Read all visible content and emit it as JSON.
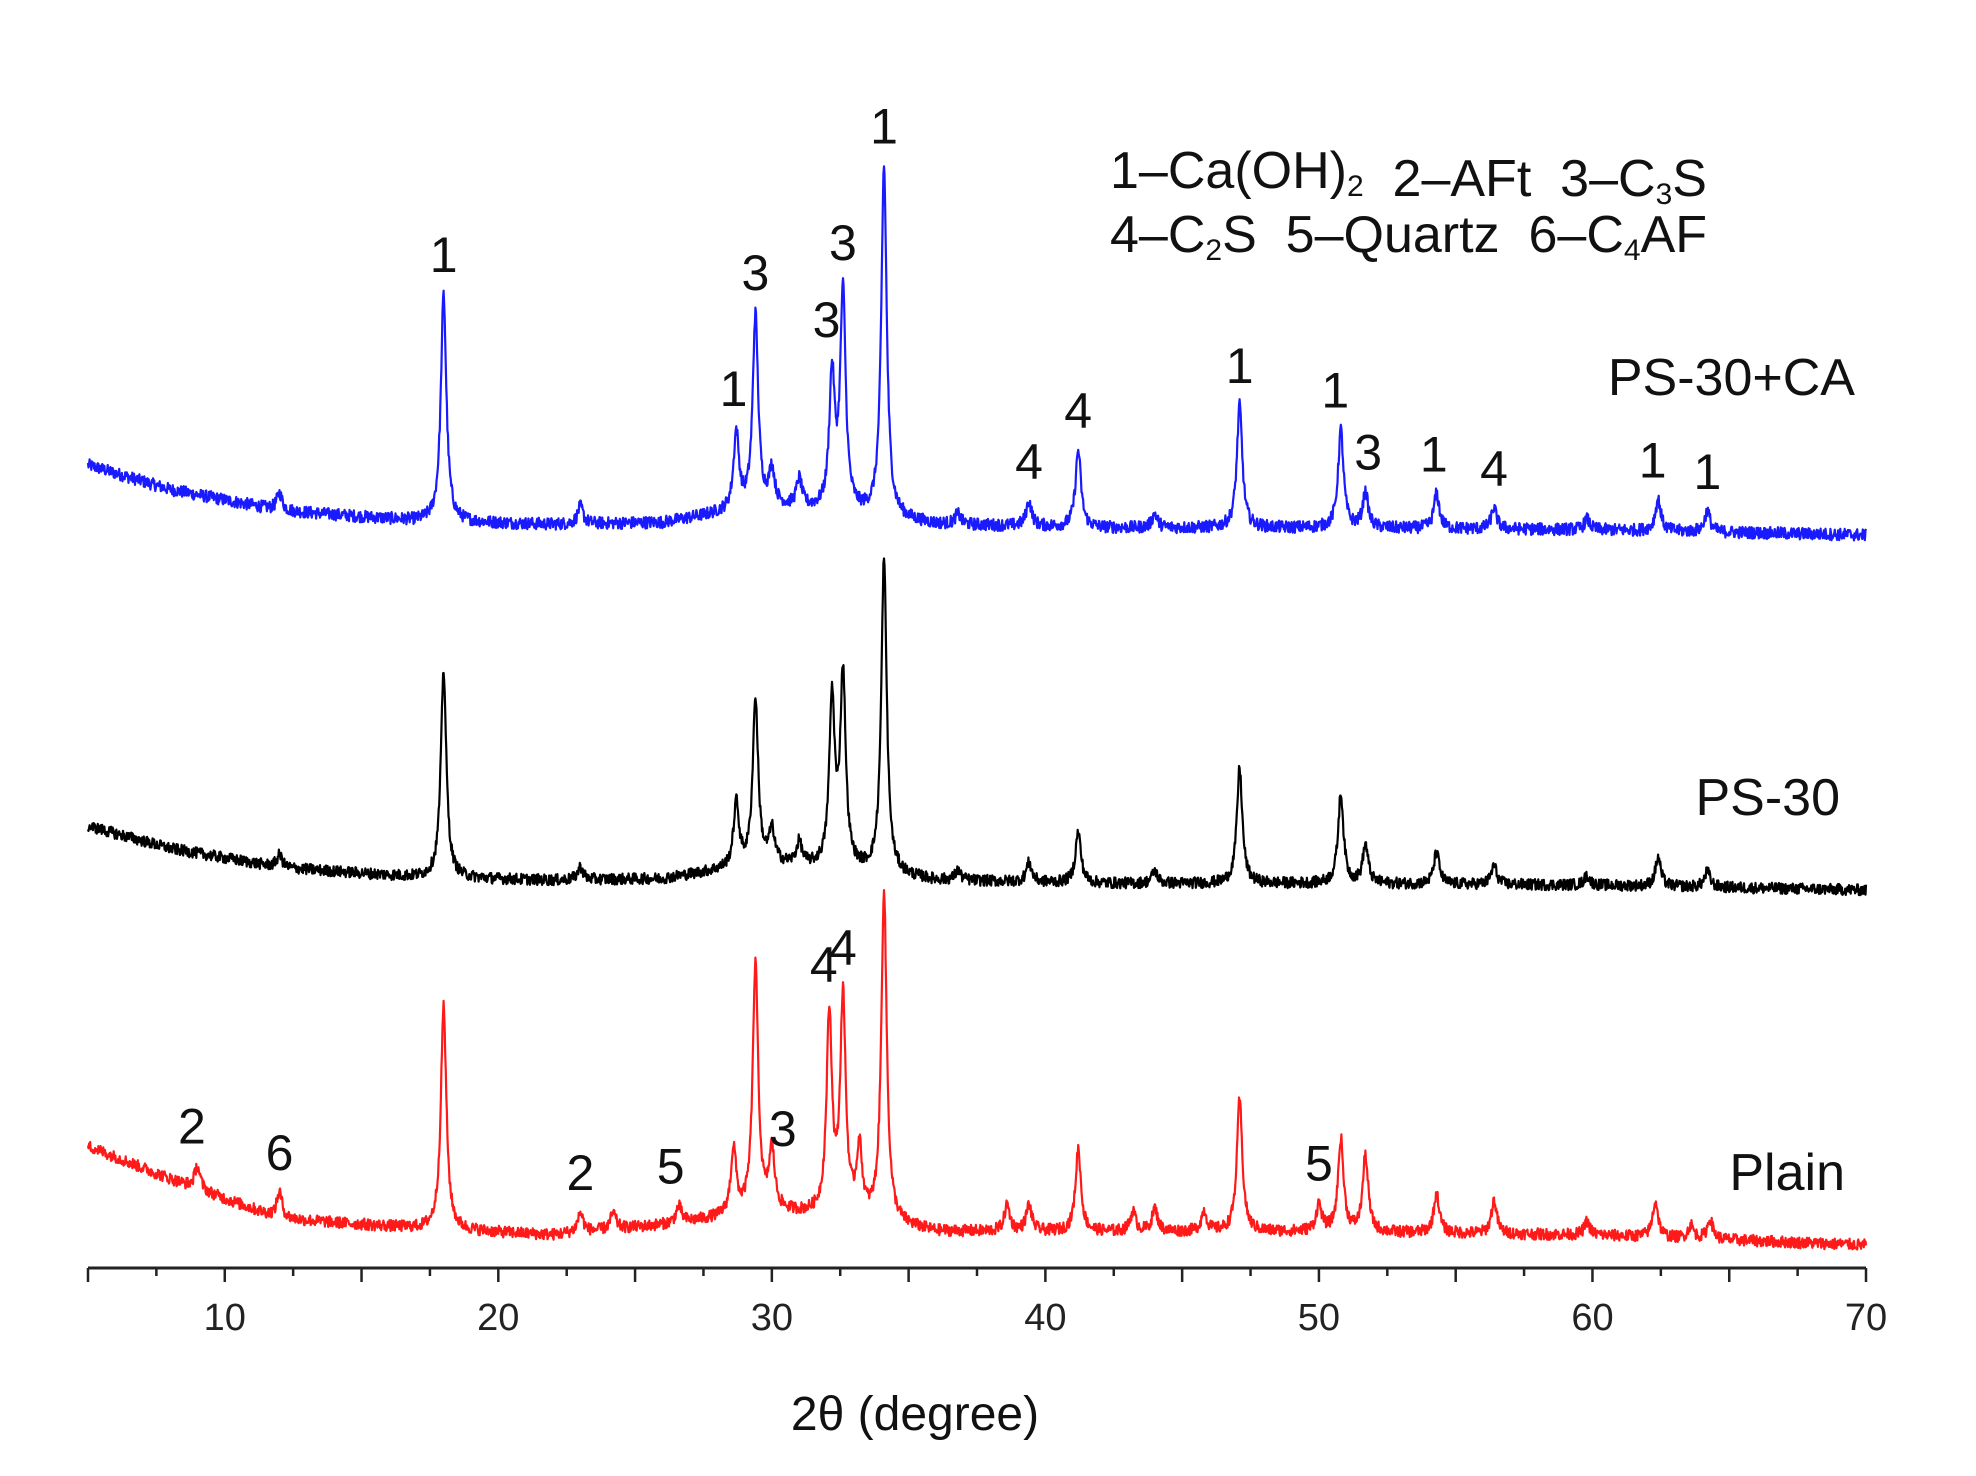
{
  "chart_data": {
    "type": "line",
    "xlabel": "2θ (degree)",
    "ylabel": "",
    "xlim": [
      5,
      70
    ],
    "x_ticks": [
      10,
      20,
      30,
      40,
      50,
      60,
      70
    ],
    "grid": false,
    "legend": {
      "line1": [
        {
          "num": "1",
          "name": "Ca(OH)",
          "sub": "2"
        },
        {
          "num": "2",
          "name": "AFt",
          "sub": ""
        },
        {
          "num": "3",
          "name": "C",
          "sub": "3",
          "suffix": "S"
        }
      ],
      "line2": [
        {
          "num": "4",
          "name": "C",
          "sub": "2",
          "suffix": "S"
        },
        {
          "num": "5",
          "name": "Quartz",
          "sub": ""
        },
        {
          "num": "6",
          "name": "C",
          "sub": "4",
          "suffix": "AF"
        }
      ]
    },
    "series": [
      {
        "name": "PS-30+CA",
        "color": "#1a1aff",
        "baseline": [
          [
            5,
            0.2
          ],
          [
            8,
            0.13
          ],
          [
            12,
            0.07
          ],
          [
            17,
            0.04
          ],
          [
            22,
            0.03
          ],
          [
            26,
            0.035
          ],
          [
            28,
            0.06
          ],
          [
            30,
            0.08
          ],
          [
            33,
            0.06
          ],
          [
            36,
            0.03
          ],
          [
            42,
            0.02
          ],
          [
            50,
            0.02
          ],
          [
            60,
            0.015
          ],
          [
            70,
            0.0
          ]
        ],
        "peaks": [
          [
            12.0,
            0.05
          ],
          [
            18.0,
            0.65
          ],
          [
            23.0,
            0.05
          ],
          [
            28.7,
            0.22
          ],
          [
            29.4,
            0.55
          ],
          [
            30.0,
            0.1
          ],
          [
            31.0,
            0.08
          ],
          [
            32.2,
            0.38
          ],
          [
            32.6,
            0.62
          ],
          [
            34.1,
            1.0
          ],
          [
            36.8,
            0.03
          ],
          [
            39.4,
            0.07
          ],
          [
            41.2,
            0.22
          ],
          [
            44.0,
            0.04
          ],
          [
            47.1,
            0.35
          ],
          [
            50.8,
            0.28
          ],
          [
            51.7,
            0.1
          ],
          [
            54.3,
            0.1
          ],
          [
            56.4,
            0.06
          ],
          [
            59.8,
            0.03
          ],
          [
            62.4,
            0.09
          ],
          [
            64.2,
            0.06
          ]
        ],
        "annotations": [
          {
            "x": 18.0,
            "text": "1"
          },
          {
            "x": 28.6,
            "text": "1"
          },
          {
            "x": 29.4,
            "text": "3"
          },
          {
            "x": 32.0,
            "text": "3"
          },
          {
            "x": 32.6,
            "text": "3"
          },
          {
            "x": 34.1,
            "text": "1"
          },
          {
            "x": 39.4,
            "text": "4"
          },
          {
            "x": 41.2,
            "text": "4"
          },
          {
            "x": 47.1,
            "text": "1"
          },
          {
            "x": 50.6,
            "text": "1"
          },
          {
            "x": 51.8,
            "text": "3"
          },
          {
            "x": 54.2,
            "text": "1"
          },
          {
            "x": 56.4,
            "text": "4"
          },
          {
            "x": 62.2,
            "text": "1"
          },
          {
            "x": 64.2,
            "text": "1"
          }
        ]
      },
      {
        "name": "PS-30",
        "color": "#000000",
        "baseline": [
          [
            5,
            0.2
          ],
          [
            8,
            0.13
          ],
          [
            12,
            0.07
          ],
          [
            17,
            0.04
          ],
          [
            22,
            0.03
          ],
          [
            26,
            0.035
          ],
          [
            28,
            0.06
          ],
          [
            30,
            0.08
          ],
          [
            33,
            0.06
          ],
          [
            36,
            0.03
          ],
          [
            42,
            0.02
          ],
          [
            50,
            0.02
          ],
          [
            60,
            0.015
          ],
          [
            70,
            0.0
          ]
        ],
        "peaks": [
          [
            12.0,
            0.04
          ],
          [
            18.0,
            0.65
          ],
          [
            23.0,
            0.04
          ],
          [
            28.7,
            0.2
          ],
          [
            29.4,
            0.52
          ],
          [
            30.0,
            0.1
          ],
          [
            31.0,
            0.07
          ],
          [
            32.2,
            0.52
          ],
          [
            32.6,
            0.6
          ],
          [
            34.1,
            0.98
          ],
          [
            36.8,
            0.03
          ],
          [
            39.4,
            0.06
          ],
          [
            41.2,
            0.16
          ],
          [
            44.0,
            0.04
          ],
          [
            47.1,
            0.36
          ],
          [
            50.8,
            0.28
          ],
          [
            51.7,
            0.12
          ],
          [
            54.3,
            0.1
          ],
          [
            56.4,
            0.06
          ],
          [
            59.8,
            0.03
          ],
          [
            62.4,
            0.09
          ],
          [
            64.2,
            0.05
          ]
        ],
        "annotations": []
      },
      {
        "name": "Plain",
        "color": "#ff1a1a",
        "baseline": [
          [
            5,
            0.3
          ],
          [
            8,
            0.2
          ],
          [
            12,
            0.08
          ],
          [
            17,
            0.05
          ],
          [
            22,
            0.03
          ],
          [
            26,
            0.06
          ],
          [
            28,
            0.08
          ],
          [
            30,
            0.1
          ],
          [
            33,
            0.08
          ],
          [
            36,
            0.04
          ],
          [
            42,
            0.04
          ],
          [
            50,
            0.04
          ],
          [
            60,
            0.03
          ],
          [
            70,
            0.0
          ]
        ],
        "peaks": [
          [
            9.0,
            0.07
          ],
          [
            12.0,
            0.08
          ],
          [
            18.0,
            0.68
          ],
          [
            23.0,
            0.06
          ],
          [
            24.2,
            0.05
          ],
          [
            26.6,
            0.05
          ],
          [
            28.6,
            0.2
          ],
          [
            29.4,
            0.75
          ],
          [
            30.0,
            0.18
          ],
          [
            32.1,
            0.6
          ],
          [
            32.6,
            0.65
          ],
          [
            33.2,
            0.2
          ],
          [
            34.1,
            1.0
          ],
          [
            38.6,
            0.08
          ],
          [
            39.4,
            0.08
          ],
          [
            41.2,
            0.25
          ],
          [
            43.2,
            0.06
          ],
          [
            44.0,
            0.07
          ],
          [
            45.8,
            0.06
          ],
          [
            47.1,
            0.4
          ],
          [
            50.0,
            0.08
          ],
          [
            50.8,
            0.28
          ],
          [
            51.7,
            0.23
          ],
          [
            54.3,
            0.12
          ],
          [
            56.4,
            0.1
          ],
          [
            59.8,
            0.04
          ],
          [
            62.3,
            0.11
          ],
          [
            63.6,
            0.04
          ],
          [
            64.3,
            0.06
          ]
        ],
        "annotations": [
          {
            "x": 8.8,
            "text": "2"
          },
          {
            "x": 12.0,
            "text": "6"
          },
          {
            "x": 23.0,
            "text": "2"
          },
          {
            "x": 26.3,
            "text": "5"
          },
          {
            "x": 30.4,
            "text": "3"
          },
          {
            "x": 31.9,
            "text": "4"
          },
          {
            "x": 32.6,
            "text": "4"
          },
          {
            "x": 50.0,
            "text": "5"
          }
        ]
      }
    ]
  }
}
